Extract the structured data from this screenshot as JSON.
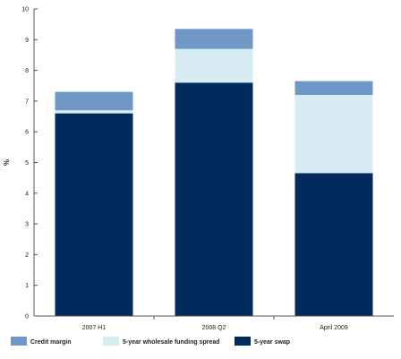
{
  "chart_data": {
    "type": "bar",
    "stacked": true,
    "categories": [
      "2007 H1",
      "2008 Q2",
      "April 2009"
    ],
    "series": [
      {
        "name": "5-year swap",
        "color": "#002b5c",
        "values": [
          6.6,
          7.6,
          4.65
        ]
      },
      {
        "name": "5-year wholesale funding spread",
        "color": "#d7ecf2",
        "values": [
          0.1,
          1.1,
          2.55
        ]
      },
      {
        "name": "Credit margin",
        "color": "#6f98c7",
        "values": [
          0.6,
          0.65,
          0.45
        ]
      }
    ],
    "ylabel": "%",
    "ylim": [
      0,
      10
    ],
    "yticks": [
      0,
      1,
      2,
      3,
      4,
      5,
      6,
      7,
      8,
      9,
      10
    ],
    "grid": false,
    "legend_position": "bottom",
    "legend_order": [
      "Credit margin",
      "5-year wholesale funding spread",
      "5-year swap"
    ]
  }
}
